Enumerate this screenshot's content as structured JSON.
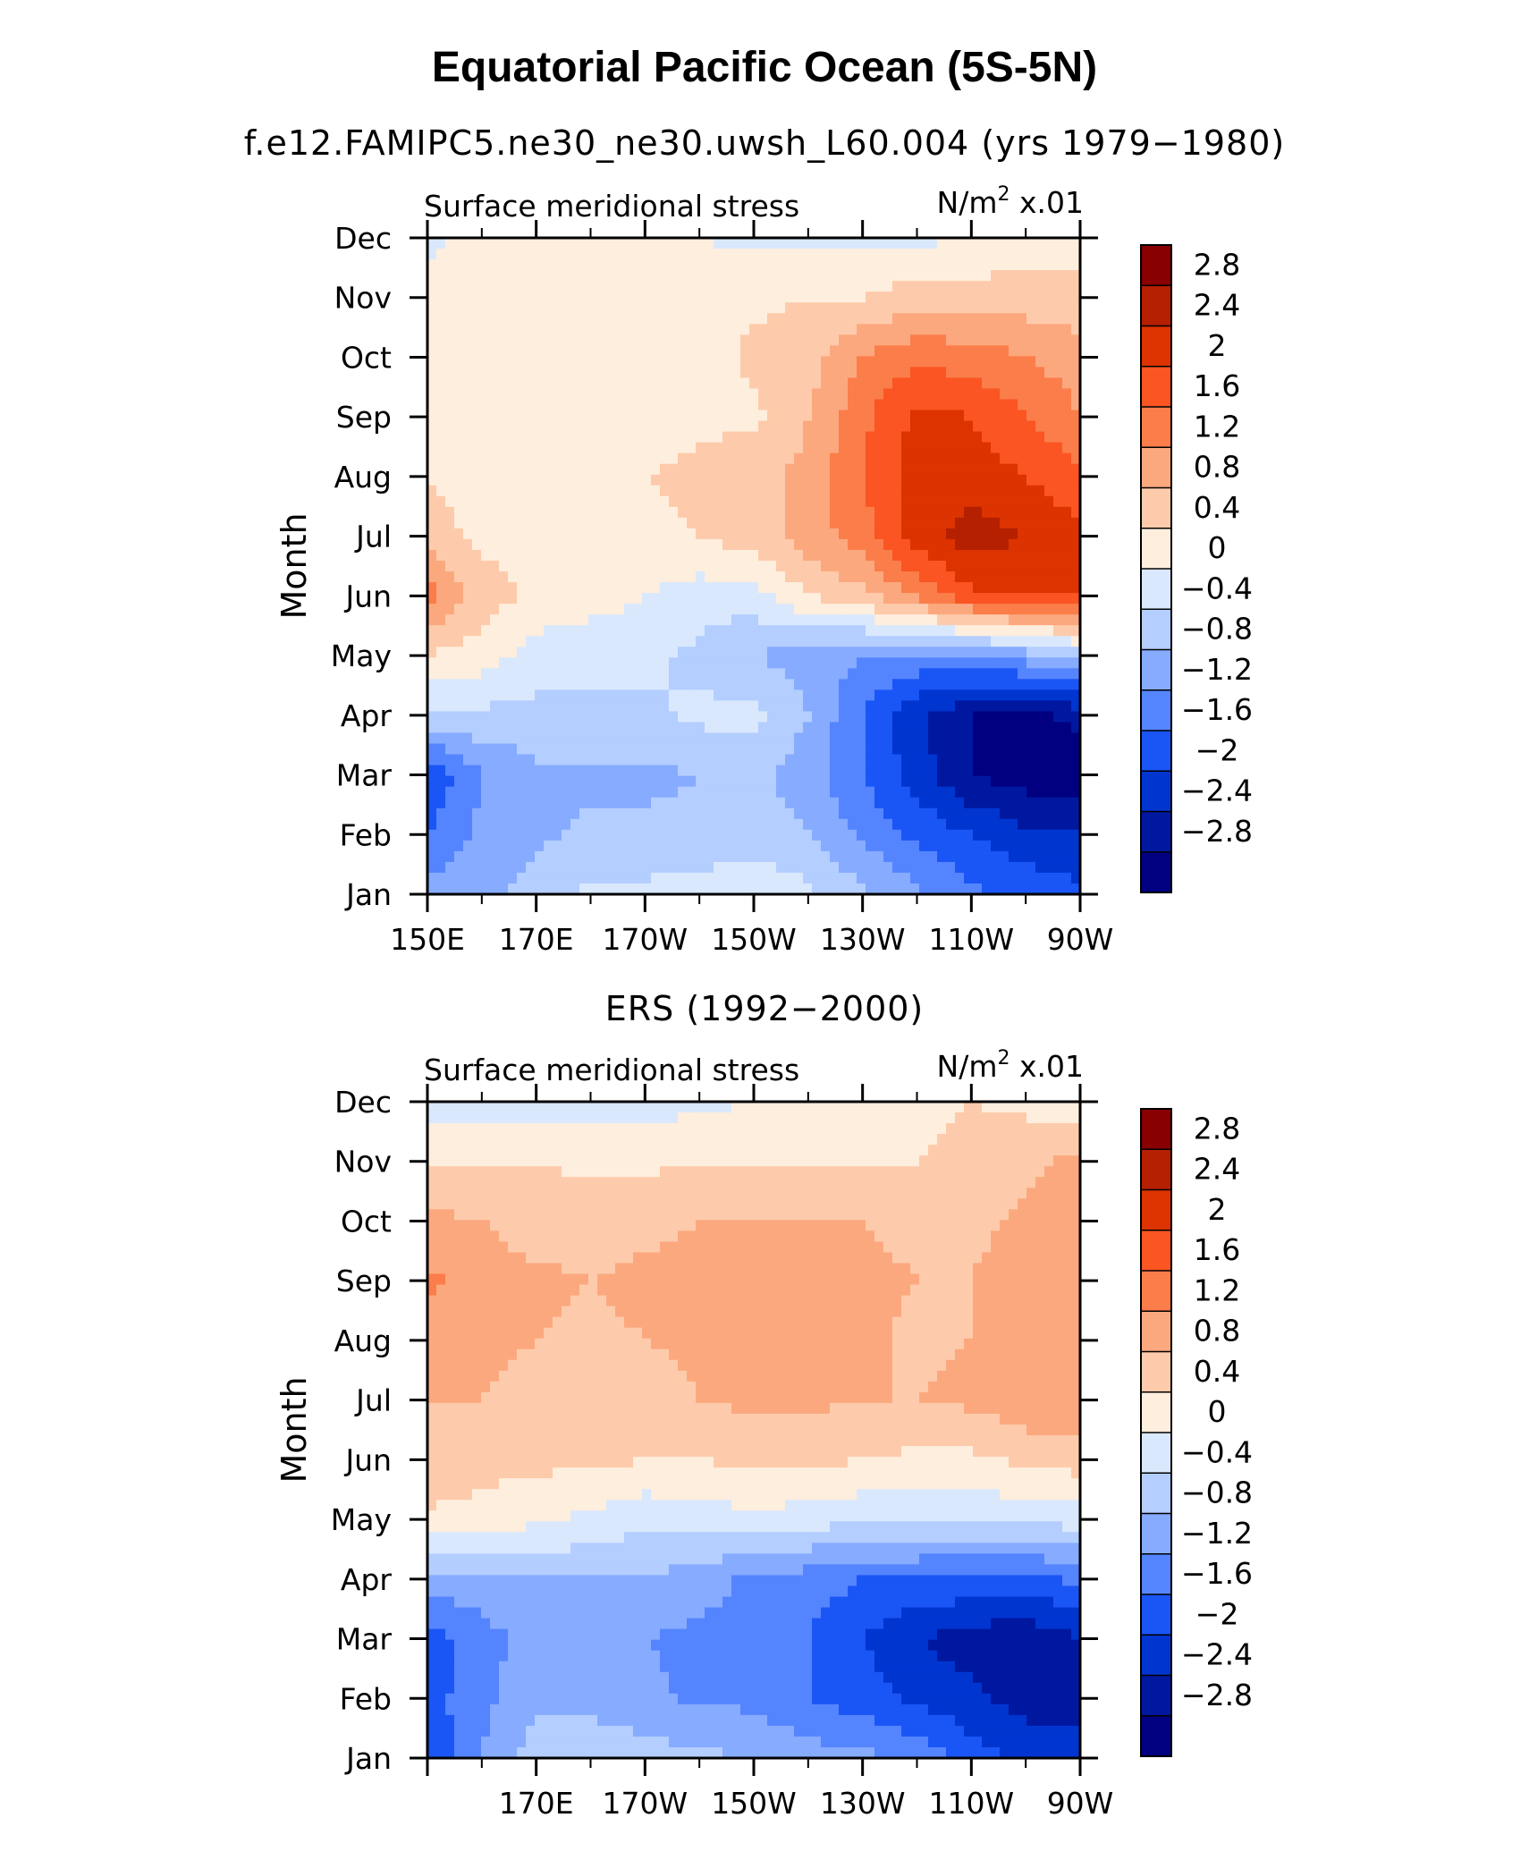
{
  "title": "Equatorial Pacific Ocean (5S-5N)",
  "colorbar": {
    "levels": [
      "2.8",
      "2.4",
      "2",
      "1.6",
      "1.2",
      "0.8",
      "0.4",
      "0",
      "−0.4",
      "−0.8",
      "−1.2",
      "−1.6",
      "−2",
      "−2.4",
      "−2.8"
    ],
    "colors": [
      "#880000",
      "#b42000",
      "#dc3300",
      "#fa5522",
      "#fb7d4a",
      "#fca87e",
      "#fdcbab",
      "#feeedd",
      "#d9e8fd",
      "#b3ceff",
      "#86abff",
      "#5485ff",
      "#1a55f5",
      "#0035d0",
      "#0018a0",
      "#000080"
    ]
  },
  "chart_data": [
    {
      "type": "heatmap",
      "title": "f.e12.FAMIPC5.ne30_ne30.uwsh_L60.004 (yrs 1979−1980)",
      "left_string": "Surface meridional stress",
      "right_string_unit": "N/m",
      "right_string_sup": "2",
      "right_string_scale": "x.01",
      "ylabel": "Month",
      "yticks": [
        "Jan",
        "Feb",
        "Mar",
        "Apr",
        "May",
        "Jun",
        "Jul",
        "Aug",
        "Sep",
        "Oct",
        "Nov",
        "Dec"
      ],
      "xticks": [
        "150E",
        "170E",
        "170W",
        "150W",
        "130W",
        "110W",
        "90W"
      ],
      "xlim": [
        150,
        270
      ],
      "x": [
        150,
        160,
        170,
        180,
        190,
        200,
        210,
        220,
        230,
        240,
        250,
        260,
        270
      ],
      "values": [
        [
          -1.0,
          -1.0,
          -0.6,
          -0.3,
          -0.3,
          -0.2,
          -0.1,
          -0.3,
          -0.7,
          -1.1,
          -1.5,
          -1.7,
          -1.9
        ],
        [
          -1.6,
          -1.1,
          -0.9,
          -0.7,
          -0.7,
          -0.7,
          -0.6,
          -0.8,
          -1.3,
          -1.7,
          -2.0,
          -2.3,
          -2.4
        ],
        [
          -2.0,
          -1.2,
          -0.9,
          -0.9,
          -0.9,
          -0.8,
          -0.7,
          -1.0,
          -1.6,
          -2.2,
          -2.8,
          -3.0,
          -3.0
        ],
        [
          -0.5,
          -0.5,
          -0.5,
          -0.5,
          -0.5,
          -0.3,
          -0.3,
          -0.8,
          -1.6,
          -2.3,
          -2.8,
          -2.9,
          -2.7
        ],
        [
          0.4,
          0.2,
          -0.2,
          -0.3,
          -0.3,
          -0.5,
          -0.8,
          -1.0,
          -1.2,
          -1.3,
          -1.2,
          -1.0,
          -0.6
        ],
        [
          1.4,
          0.6,
          0.3,
          0.2,
          0.0,
          -0.2,
          -0.2,
          0.4,
          0.7,
          1.3,
          1.9,
          2.1,
          2.1
        ],
        [
          0.6,
          0.3,
          0.2,
          0.2,
          0.3,
          0.4,
          0.6,
          1.0,
          1.4,
          2.2,
          2.6,
          2.4,
          2.1
        ],
        [
          0.4,
          0.2,
          0.2,
          0.2,
          0.4,
          0.5,
          0.7,
          0.9,
          1.6,
          2.2,
          2.2,
          2.0,
          1.7
        ],
        [
          0.3,
          0.2,
          0.2,
          0.2,
          0.2,
          0.3,
          0.3,
          0.8,
          1.5,
          2.1,
          2.0,
          1.6,
          1.2
        ],
        [
          0.2,
          0.1,
          0.1,
          0.1,
          0.1,
          0.2,
          0.5,
          0.6,
          1.2,
          1.5,
          1.4,
          1.2,
          1.0
        ],
        [
          0.2,
          0.1,
          0.1,
          0.1,
          0.1,
          0.2,
          0.3,
          0.4,
          0.4,
          0.6,
          0.6,
          0.6,
          0.5
        ],
        [
          -0.1,
          0.2,
          0.1,
          0.1,
          0.1,
          0.0,
          -0.1,
          -0.1,
          -0.1,
          -0.1,
          0.0,
          0.2,
          0.3
        ]
      ]
    },
    {
      "type": "heatmap",
      "title": "ERS (1992−2000)",
      "left_string": "Surface meridional stress",
      "right_string_unit": "N/m",
      "right_string_sup": "2",
      "right_string_scale": "x.01",
      "ylabel": "Month",
      "yticks": [
        "Jan",
        "Feb",
        "Mar",
        "Apr",
        "May",
        "Jun",
        "Jul",
        "Aug",
        "Sep",
        "Oct",
        "Nov",
        "Dec"
      ],
      "xticks": [
        "170E",
        "170W",
        "150W",
        "130W",
        "110W",
        "90W"
      ],
      "xlim": [
        150,
        270
      ],
      "x": [
        150,
        160,
        170,
        180,
        190,
        200,
        210,
        220,
        230,
        240,
        250,
        260,
        270
      ],
      "values": [
        [
          -1.9,
          -1.2,
          -0.6,
          -0.4,
          -0.6,
          -0.7,
          -0.8,
          -1.0,
          -1.1,
          -1.3,
          -1.8,
          -2.1,
          -2.3
        ],
        [
          -1.8,
          -1.3,
          -0.9,
          -1.0,
          -1.1,
          -1.3,
          -1.3,
          -1.6,
          -1.8,
          -2.1,
          -2.3,
          -2.6,
          -2.5
        ],
        [
          -1.8,
          -1.4,
          -1.0,
          -1.0,
          -1.2,
          -1.3,
          -1.4,
          -1.6,
          -2.0,
          -2.4,
          -2.6,
          -2.7,
          -2.4
        ],
        [
          -1.0,
          -0.9,
          -0.8,
          -0.8,
          -0.8,
          -1.0,
          -1.3,
          -1.4,
          -1.6,
          -1.6,
          -1.7,
          -1.8,
          -1.5
        ],
        [
          0.3,
          0.2,
          0.1,
          -0.1,
          -0.3,
          -0.2,
          -0.1,
          -0.2,
          -0.3,
          -0.4,
          -0.3,
          -0.3,
          -0.2
        ],
        [
          0.8,
          0.6,
          0.5,
          0.5,
          0.4,
          0.4,
          0.5,
          0.5,
          0.4,
          0.3,
          0.3,
          0.5,
          0.6
        ],
        [
          0.8,
          0.8,
          0.6,
          0.6,
          0.6,
          0.8,
          0.9,
          0.9,
          0.8,
          0.8,
          0.9,
          1.1,
          1.2
        ],
        [
          0.9,
          0.9,
          0.8,
          0.7,
          0.8,
          0.9,
          1.0,
          1.0,
          0.9,
          0.7,
          0.8,
          1.0,
          1.1
        ],
        [
          1.3,
          1.0,
          0.9,
          0.8,
          0.9,
          0.9,
          1.0,
          1.0,
          0.9,
          0.8,
          0.8,
          1.0,
          1.2
        ],
        [
          0.9,
          0.8,
          0.6,
          0.6,
          0.7,
          0.8,
          0.8,
          0.8,
          0.8,
          0.7,
          0.7,
          0.9,
          1.1
        ],
        [
          0.3,
          0.4,
          0.4,
          0.3,
          0.3,
          0.4,
          0.4,
          0.4,
          0.4,
          0.4,
          0.5,
          0.7,
          0.9
        ],
        [
          -0.2,
          -0.2,
          -0.3,
          -0.2,
          -0.2,
          -0.1,
          0.0,
          0.1,
          0.2,
          0.3,
          0.4,
          0.3,
          0.1
        ]
      ]
    }
  ]
}
